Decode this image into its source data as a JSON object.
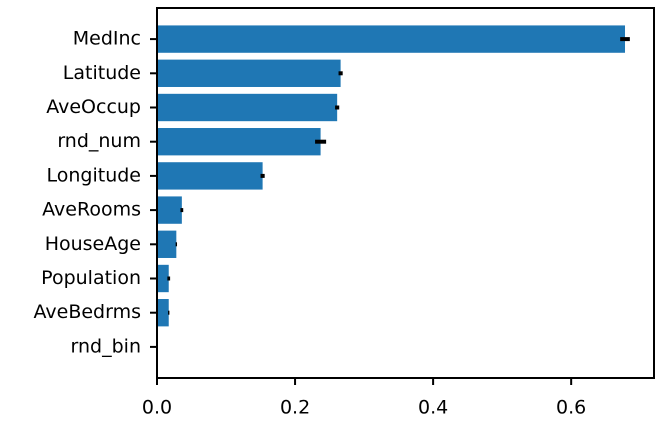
{
  "chart_data": {
    "type": "bar",
    "orientation": "horizontal",
    "categories": [
      "MedInc",
      "Latitude",
      "AveOccup",
      "rnd_num",
      "Longitude",
      "AveRooms",
      "HouseAge",
      "Population",
      "AveBedrms",
      "rnd_bin"
    ],
    "values": [
      0.678,
      0.266,
      0.261,
      0.237,
      0.153,
      0.036,
      0.028,
      0.017,
      0.017,
      0.0
    ],
    "errors": [
      0.007,
      0.003,
      0.003,
      0.008,
      0.003,
      0.002,
      0.001,
      0.002,
      0.001,
      0.0
    ],
    "color": "#1f77b4",
    "error_color": "#000000",
    "xlim": [
      0,
      0.72
    ],
    "xticks": [
      {
        "value": 0,
        "label": "0.0"
      },
      0.2,
      0.4,
      0.6
    ]
  }
}
